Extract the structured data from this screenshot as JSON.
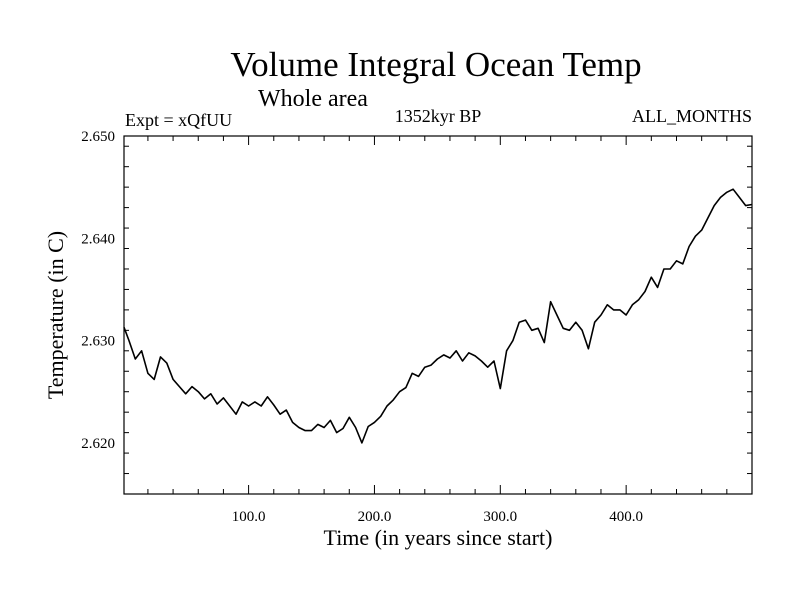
{
  "chart_data": {
    "type": "line",
    "title": "Volume Integral Ocean Temp",
    "subtitle": "Whole area",
    "experiment_label": "Expt = xQfUU",
    "period_label": "1352kyr BP",
    "months_label": "ALL_MONTHS",
    "xlabel": "Time (in years since start)",
    "ylabel": "Temperature (in C)",
    "xlim": [
      1,
      500
    ],
    "ylim": [
      2.615,
      2.65
    ],
    "x_ticks": [
      {
        "value": 100,
        "label": "100.0"
      },
      {
        "value": 200,
        "label": "200.0"
      },
      {
        "value": 300,
        "label": "300.0"
      },
      {
        "value": 400,
        "label": "400.0"
      }
    ],
    "y_ticks": [
      {
        "value": 2.62,
        "label": "2.620"
      },
      {
        "value": 2.63,
        "label": "2.630"
      },
      {
        "value": 2.64,
        "label": "2.640"
      },
      {
        "value": 2.65,
        "label": "2.650"
      }
    ],
    "series": [
      {
        "name": "Volume Integral Ocean Temp",
        "color": "#000000",
        "x": [
          1,
          5,
          10,
          15,
          20,
          25,
          30,
          35,
          40,
          45,
          50,
          55,
          60,
          65,
          70,
          75,
          80,
          85,
          90,
          95,
          100,
          105,
          110,
          115,
          120,
          125,
          130,
          135,
          140,
          145,
          150,
          155,
          160,
          165,
          170,
          175,
          180,
          185,
          190,
          195,
          200,
          205,
          210,
          215,
          220,
          225,
          230,
          235,
          240,
          245,
          250,
          255,
          260,
          265,
          270,
          275,
          280,
          285,
          290,
          295,
          300,
          305,
          310,
          315,
          320,
          325,
          330,
          335,
          340,
          345,
          350,
          355,
          360,
          365,
          370,
          375,
          380,
          385,
          390,
          395,
          400,
          405,
          410,
          415,
          420,
          425,
          430,
          435,
          440,
          445,
          450,
          455,
          460,
          465,
          470,
          475,
          480,
          485,
          490,
          495,
          500
        ],
        "values": [
          2.6313,
          2.63,
          2.6282,
          2.629,
          2.6268,
          2.6262,
          2.6284,
          2.6278,
          2.6262,
          2.6255,
          2.6248,
          2.6255,
          2.625,
          2.6243,
          2.6248,
          2.6238,
          2.6244,
          2.6236,
          2.6228,
          2.624,
          2.6236,
          2.624,
          2.6236,
          2.6245,
          2.6237,
          2.6228,
          2.6232,
          2.622,
          2.6215,
          2.6212,
          2.6212,
          2.6218,
          2.6215,
          2.6222,
          2.621,
          2.6214,
          2.6225,
          2.6215,
          2.62,
          2.6216,
          2.622,
          2.6226,
          2.6236,
          2.6242,
          2.625,
          2.6254,
          2.6268,
          2.6265,
          2.6274,
          2.6276,
          2.6282,
          2.6286,
          2.6283,
          2.629,
          2.628,
          2.6288,
          2.6285,
          2.628,
          2.6274,
          2.628,
          2.6253,
          2.629,
          2.63,
          2.6318,
          2.632,
          2.631,
          2.6312,
          2.6298,
          2.6338,
          2.6325,
          2.6312,
          2.631,
          2.6318,
          2.631,
          2.6292,
          2.6318,
          2.6325,
          2.6335,
          2.633,
          2.633,
          2.6325,
          2.6335,
          2.634,
          2.6348,
          2.6362,
          2.6352,
          2.637,
          2.637,
          2.6378,
          2.6375,
          2.6392,
          2.6402,
          2.6408,
          2.642,
          2.6432,
          2.644,
          2.6445,
          2.6448,
          2.644,
          2.6432,
          2.6433
        ]
      }
    ]
  }
}
